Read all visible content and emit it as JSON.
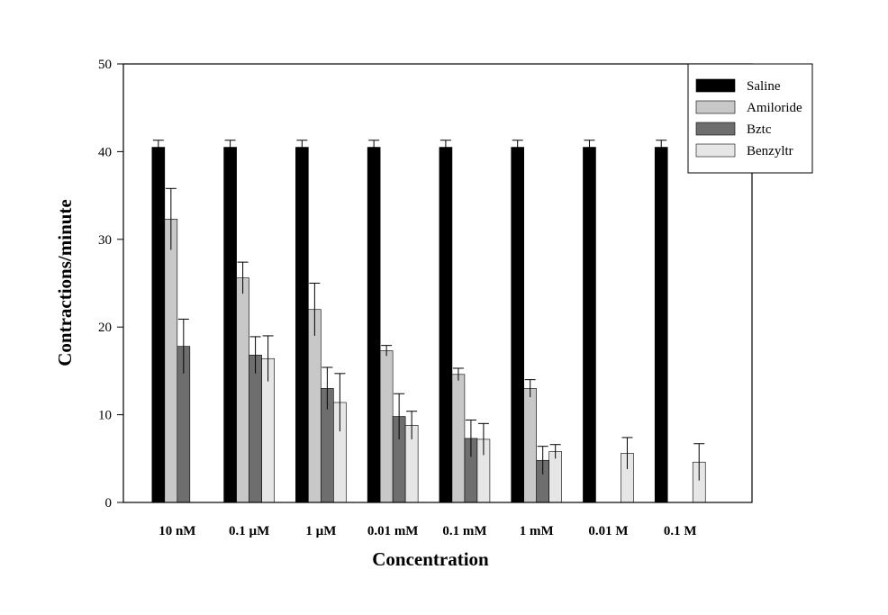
{
  "chart_data": {
    "type": "bar",
    "xlabel": "Concentration",
    "ylabel": "Contractions/minute",
    "ylim": [
      0,
      50
    ],
    "yticks": [
      0,
      10,
      20,
      30,
      40,
      50
    ],
    "grid": false,
    "legend_position": "top-right",
    "categories": [
      "10 nM",
      "0.1 µM",
      "1 µM",
      "0.01 mM",
      "0.1 mM",
      "1 mM",
      "0.01 M",
      "0.1 M"
    ],
    "series": [
      {
        "name": "Saline",
        "color": "#000000",
        "values": [
          40.5,
          40.5,
          40.5,
          40.5,
          40.5,
          40.5,
          40.5,
          40.5
        ],
        "errors": [
          0.8,
          0.8,
          0.8,
          0.8,
          0.8,
          0.8,
          0.8,
          0.8
        ]
      },
      {
        "name": "Amiloride",
        "color": "#c8c8c8",
        "values": [
          32.3,
          25.6,
          22.0,
          17.3,
          14.6,
          13.0,
          null,
          null
        ],
        "errors": [
          3.5,
          1.8,
          3.0,
          0.6,
          0.7,
          1.0,
          null,
          null
        ]
      },
      {
        "name": "Bztc",
        "color": "#6e6e6e",
        "values": [
          17.8,
          16.8,
          13.0,
          9.8,
          7.3,
          4.8,
          null,
          null
        ],
        "errors": [
          3.1,
          2.1,
          2.4,
          2.6,
          2.1,
          1.6,
          null,
          null
        ]
      },
      {
        "name": "Benzyltr",
        "color": "#e6e6e6",
        "values": [
          null,
          16.4,
          11.4,
          8.8,
          7.2,
          5.8,
          5.6,
          4.6
        ],
        "errors": [
          null,
          2.6,
          3.3,
          1.6,
          1.8,
          0.8,
          1.8,
          2.1
        ]
      }
    ]
  }
}
